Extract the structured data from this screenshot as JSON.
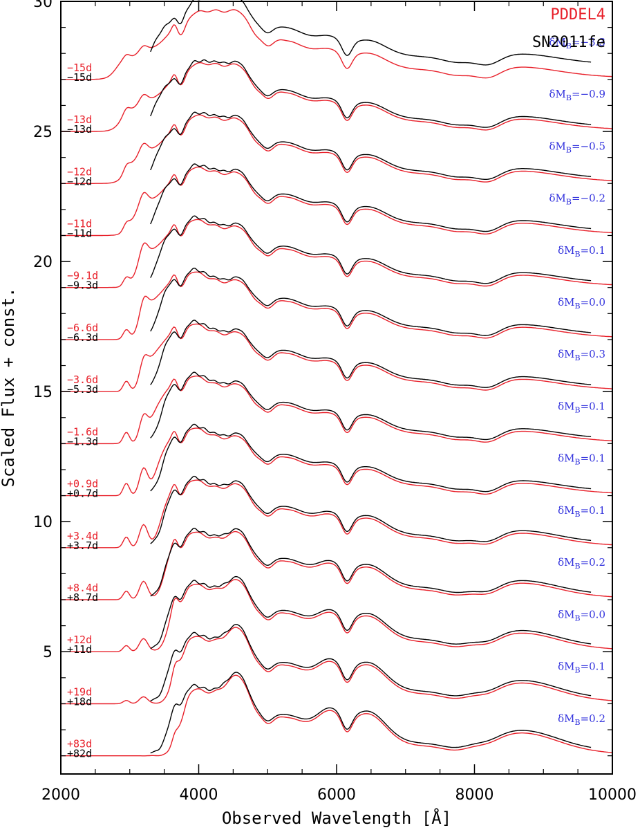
{
  "chart_data": {
    "type": "line",
    "title": "",
    "xlabel": "Observed Wavelength  [Å]",
    "ylabel": "Scaled Flux + const.",
    "xlim": [
      2000,
      10000
    ],
    "ylim": [
      0.3,
      30
    ],
    "x_ticks": [
      2000,
      4000,
      6000,
      8000,
      10000
    ],
    "y_ticks": [
      5,
      10,
      15,
      20,
      25,
      30
    ],
    "grid": false,
    "legend": [
      {
        "label": "PDDEL4",
        "color": "#e8202a"
      },
      {
        "label": "SN2011fe",
        "color": "#000000"
      }
    ],
    "legend_position": "top-right",
    "model_color": "#e8202a",
    "obs_color": "#000000",
    "annotation_color": "#3333dd",
    "dm_prefix": "δM",
    "dm_sub": "B",
    "epochs": [
      {
        "model_phase": "−15d",
        "obs_phase": "−15d",
        "dm": "=−3.3",
        "offset": 27.0
      },
      {
        "model_phase": "−13d",
        "obs_phase": "−13d",
        "dm": "=−0.9",
        "offset": 25.0
      },
      {
        "model_phase": "−12d",
        "obs_phase": "−12d",
        "dm": "=−0.5",
        "offset": 23.0
      },
      {
        "model_phase": "−11d",
        "obs_phase": "−11d",
        "dm": "=−0.2",
        "offset": 21.0
      },
      {
        "model_phase": "−9.1d",
        "obs_phase": "−9.3d",
        "dm": "=0.1",
        "offset": 19.0
      },
      {
        "model_phase": "−6.6d",
        "obs_phase": "−6.3d",
        "dm": "=0.0",
        "offset": 17.0
      },
      {
        "model_phase": "−3.6d",
        "obs_phase": "−5.3d",
        "dm": "=0.3",
        "offset": 15.0
      },
      {
        "model_phase": "−1.6d",
        "obs_phase": "−1.3d",
        "dm": "=0.1",
        "offset": 13.0
      },
      {
        "model_phase": "+0.9d",
        "obs_phase": "+0.7d",
        "dm": "=0.1",
        "offset": 11.0
      },
      {
        "model_phase": "+3.4d",
        "obs_phase": "+3.7d",
        "dm": "=0.1",
        "offset": 9.0
      },
      {
        "model_phase": "+8.4d",
        "obs_phase": "+8.7d",
        "dm": "=0.2",
        "offset": 7.0
      },
      {
        "model_phase": "+12d",
        "obs_phase": "+11d",
        "dm": "=0.0",
        "offset": 5.0
      },
      {
        "model_phase": "+19d",
        "obs_phase": "+18d",
        "dm": "=0.1",
        "offset": 3.0
      },
      {
        "model_phase": "+83d",
        "obs_phase": "+82d",
        "dm": "=0.2",
        "offset": 1.0
      }
    ]
  }
}
